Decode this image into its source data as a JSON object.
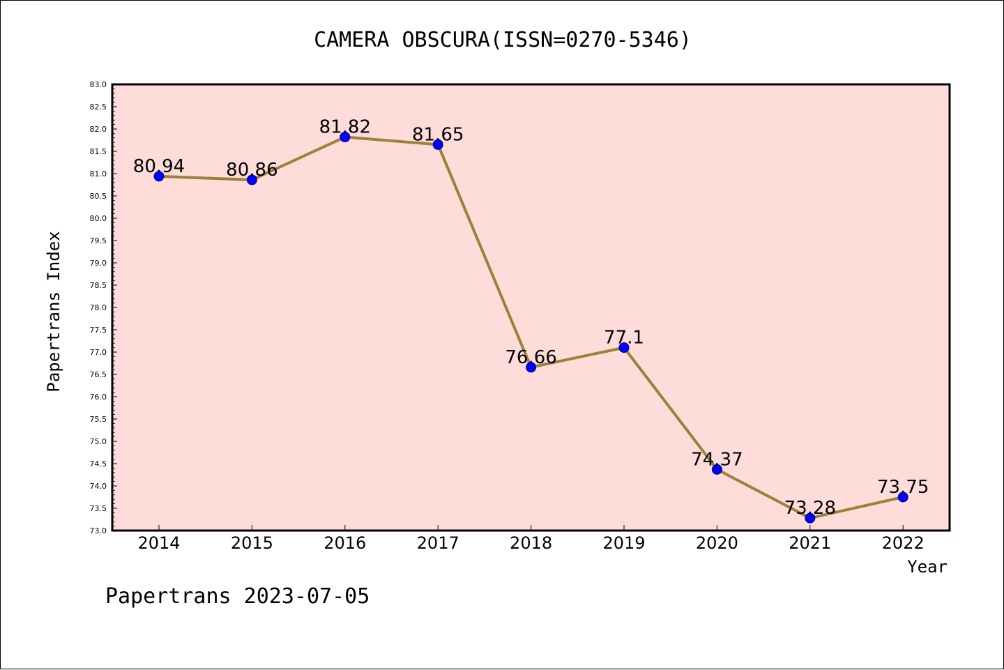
{
  "chart_data": {
    "type": "line",
    "title": "CAMERA OBSCURA(ISSN=0270-5346)",
    "xlabel": "Year",
    "ylabel": "Papertrans Index",
    "categories": [
      "2014",
      "2015",
      "2016",
      "2017",
      "2018",
      "2019",
      "2020",
      "2021",
      "2022"
    ],
    "series": [
      {
        "values": [
          80.94,
          80.86,
          81.82,
          81.65,
          76.66,
          77.1,
          74.37,
          73.28,
          73.75
        ],
        "labels": [
          "80.94",
          "80.86",
          "81.82",
          "81.65",
          "76.66",
          "77.1",
          "74.37",
          "73.28",
          "73.75"
        ]
      }
    ],
    "ylim": [
      73.0,
      83.0
    ],
    "yticks": [
      "73.0",
      "73.5",
      "74.0",
      "74.5",
      "75.0",
      "75.5",
      "76.0",
      "76.5",
      "77.0",
      "77.5",
      "78.0",
      "78.5",
      "79.0",
      "79.5",
      "80.0",
      "80.5",
      "81.0",
      "81.5",
      "82.0",
      "82.5",
      "83.0"
    ],
    "grid": false,
    "legend": "none",
    "footer": "Papertrans 2023-07-05",
    "colors": {
      "plot_background": "#fddcda",
      "line": "#9a8238",
      "marker": "#0000ff",
      "marker_edge": "#000080"
    }
  }
}
